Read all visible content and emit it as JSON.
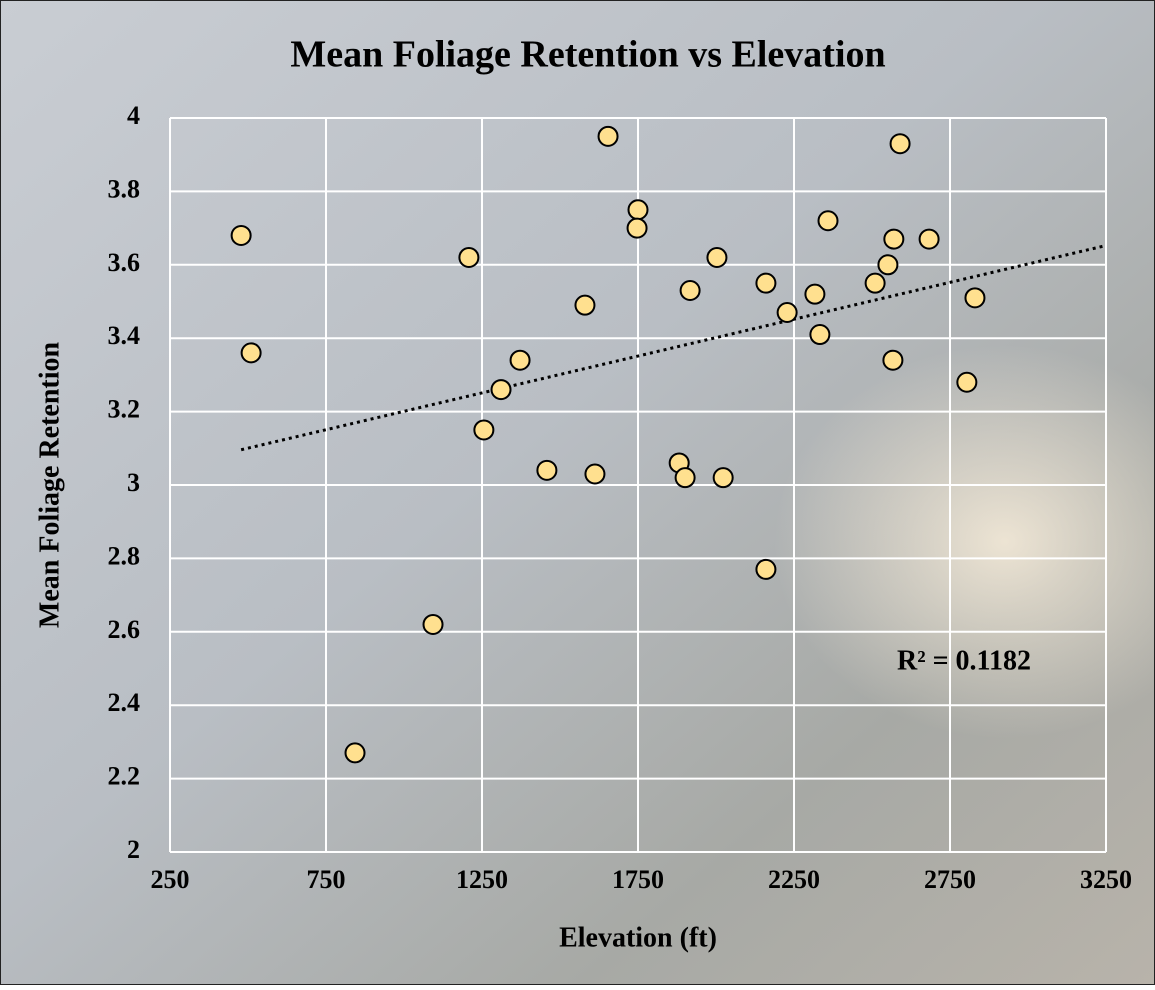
{
  "chart_data": {
    "type": "scatter",
    "title": "Mean Foliage Retention vs  Elevation",
    "x_label": "Elevation (ft)",
    "y_label": "Mean Foliage Retention",
    "annotation": "R² = 0.1182",
    "trendline": "linear",
    "color": "#ffe08f",
    "grid": true,
    "x": [
      478,
      510,
      843,
      1093,
      1208,
      1256,
      1311,
      1372,
      1458,
      1580,
      1612,
      1654,
      1750,
      1747,
      1882,
      1901,
      1917,
      2003,
      2023,
      2160,
      2160,
      2228,
      2317,
      2333,
      2359,
      2510,
      2551,
      2567,
      2570,
      2590,
      2683,
      2804,
      2830
    ],
    "y": [
      3.68,
      3.36,
      2.27,
      2.62,
      3.62,
      3.15,
      3.26,
      3.34,
      3.04,
      3.49,
      3.03,
      3.95,
      3.75,
      3.7,
      3.06,
      3.02,
      3.53,
      3.62,
      3.02,
      3.55,
      2.77,
      3.47,
      3.52,
      3.41,
      3.72,
      3.55,
      3.6,
      3.34,
      3.67,
      3.93,
      3.67,
      3.28,
      3.51
    ],
    "xlim": [
      250,
      3250
    ],
    "xticks": [
      250,
      750,
      1250,
      1750,
      2250,
      2750,
      3250
    ],
    "ylim": [
      2,
      4
    ],
    "yticks": [
      2,
      2.2,
      2.4,
      2.6,
      2.8,
      3,
      3.2,
      3.4,
      3.6,
      3.8,
      4
    ]
  }
}
